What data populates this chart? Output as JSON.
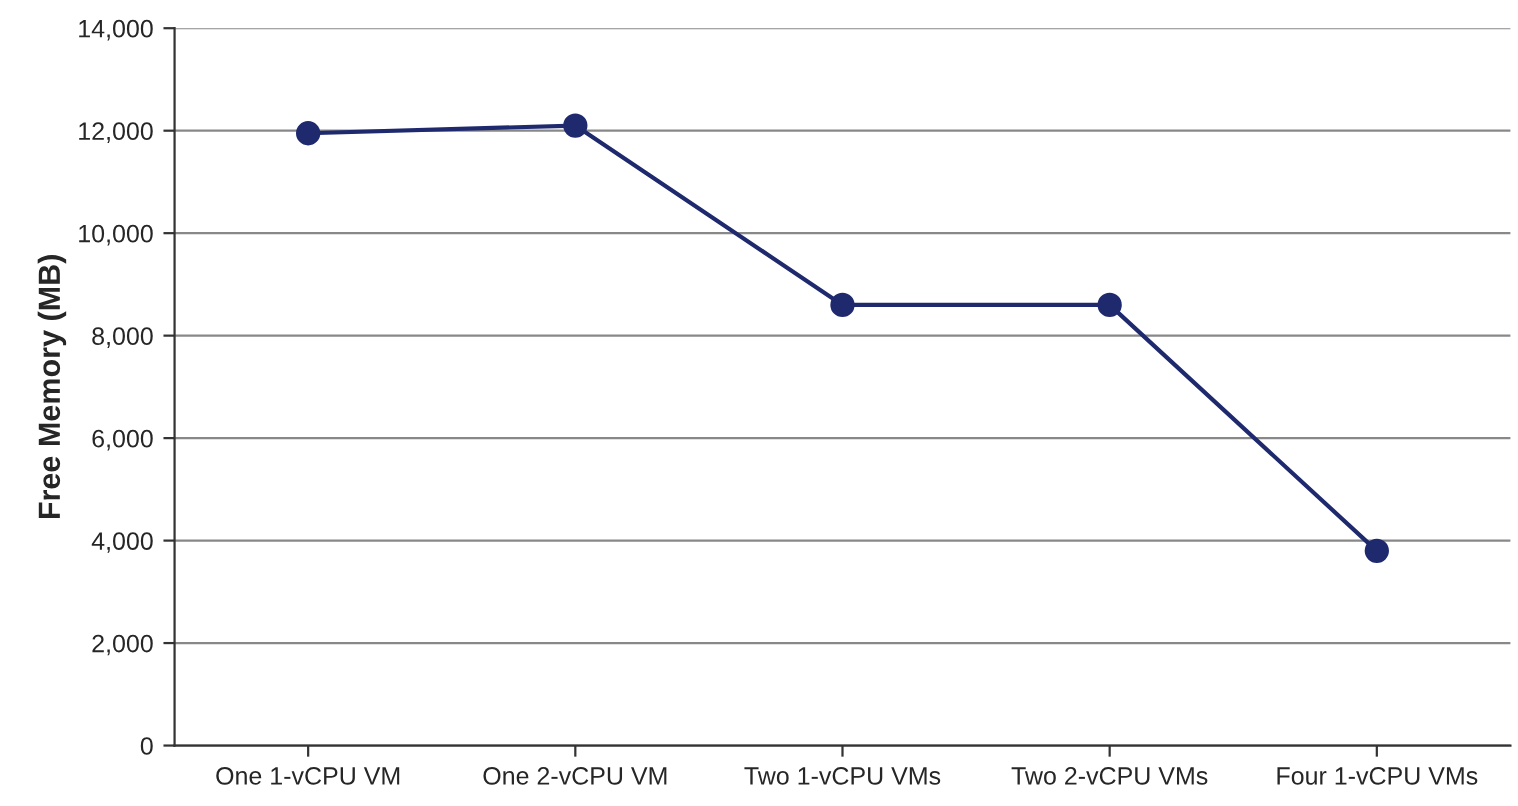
{
  "chart_data": {
    "type": "line",
    "ylabel": "Free Memory (MB)",
    "categories": [
      "One 1-vCPU VM",
      "One 2-vCPU VM",
      "Two 1-vCPU VMs",
      "Two 2-vCPU VMs",
      "Four 1-vCPU VMs"
    ],
    "series": [
      {
        "color": "#1f2a6e",
        "values": [
          11950,
          12100,
          8600,
          8600,
          3800
        ]
      }
    ],
    "ylim": [
      0,
      14000
    ],
    "yticks": [
      {
        "value": 0,
        "label": "0"
      },
      {
        "value": 2000,
        "label": "2,000"
      },
      {
        "value": 4000,
        "label": "4,000"
      },
      {
        "value": 6000,
        "label": "6,000"
      },
      {
        "value": 8000,
        "label": "8,000"
      },
      {
        "value": 10000,
        "label": "10,000"
      },
      {
        "value": 12000,
        "label": "12,000"
      },
      {
        "value": 14000,
        "label": "14,000"
      }
    ],
    "grid": "y",
    "marker": "circle",
    "line_style": "solid",
    "legend": false
  }
}
